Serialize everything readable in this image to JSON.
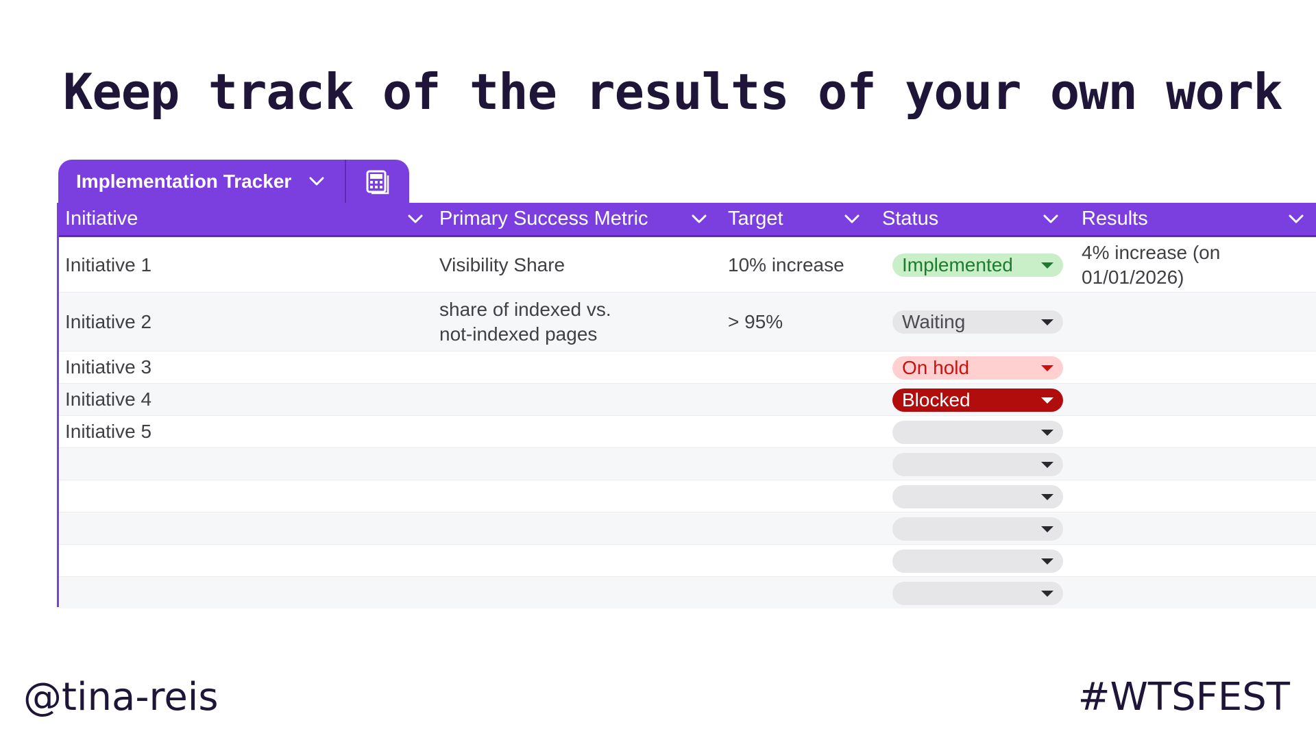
{
  "slide": {
    "title": "Keep track of the results of your own work"
  },
  "tab": {
    "label": "Implementation Tracker",
    "chevron_icon": "chevron-down-icon",
    "calc_icon": "calculator-icon"
  },
  "columns": [
    {
      "label": "Initiative"
    },
    {
      "label": "Primary Success Metric"
    },
    {
      "label": "Target"
    },
    {
      "label": "Status"
    },
    {
      "label": "Results"
    }
  ],
  "rows": [
    {
      "initiative": "Initiative 1",
      "metric": "Visibility Share",
      "target": "10% increase",
      "status": "Implemented",
      "status_kind": "implemented",
      "results": "4% increase (on 01/01/2026)"
    },
    {
      "initiative": "Initiative 2",
      "metric": "share of indexed vs. not-indexed pages",
      "target": "> 95%",
      "status": "Waiting",
      "status_kind": "waiting",
      "results": ""
    },
    {
      "initiative": "Initiative 3",
      "metric": "",
      "target": "",
      "status": "On hold",
      "status_kind": "onhold",
      "results": ""
    },
    {
      "initiative": "Initiative 4",
      "metric": "",
      "target": "",
      "status": "Blocked",
      "status_kind": "blocked",
      "results": ""
    },
    {
      "initiative": "Initiative 5",
      "metric": "",
      "target": "",
      "status": "",
      "status_kind": "empty",
      "results": ""
    },
    {
      "initiative": "",
      "metric": "",
      "target": "",
      "status": "",
      "status_kind": "empty",
      "results": ""
    },
    {
      "initiative": "",
      "metric": "",
      "target": "",
      "status": "",
      "status_kind": "empty",
      "results": ""
    },
    {
      "initiative": "",
      "metric": "",
      "target": "",
      "status": "",
      "status_kind": "empty",
      "results": ""
    },
    {
      "initiative": "",
      "metric": "",
      "target": "",
      "status": "",
      "status_kind": "empty",
      "results": ""
    },
    {
      "initiative": "",
      "metric": "",
      "target": "",
      "status": "",
      "status_kind": "empty",
      "results": ""
    }
  ],
  "footer": {
    "handle": "@tina-reis",
    "hashtag": "#WTSFEST"
  },
  "colors": {
    "accent": "#7b3fe0",
    "title": "#1e1538",
    "implemented_bg": "#c9efc8",
    "onhold_bg": "#ffd0cf",
    "blocked_bg": "#b10d0d"
  }
}
